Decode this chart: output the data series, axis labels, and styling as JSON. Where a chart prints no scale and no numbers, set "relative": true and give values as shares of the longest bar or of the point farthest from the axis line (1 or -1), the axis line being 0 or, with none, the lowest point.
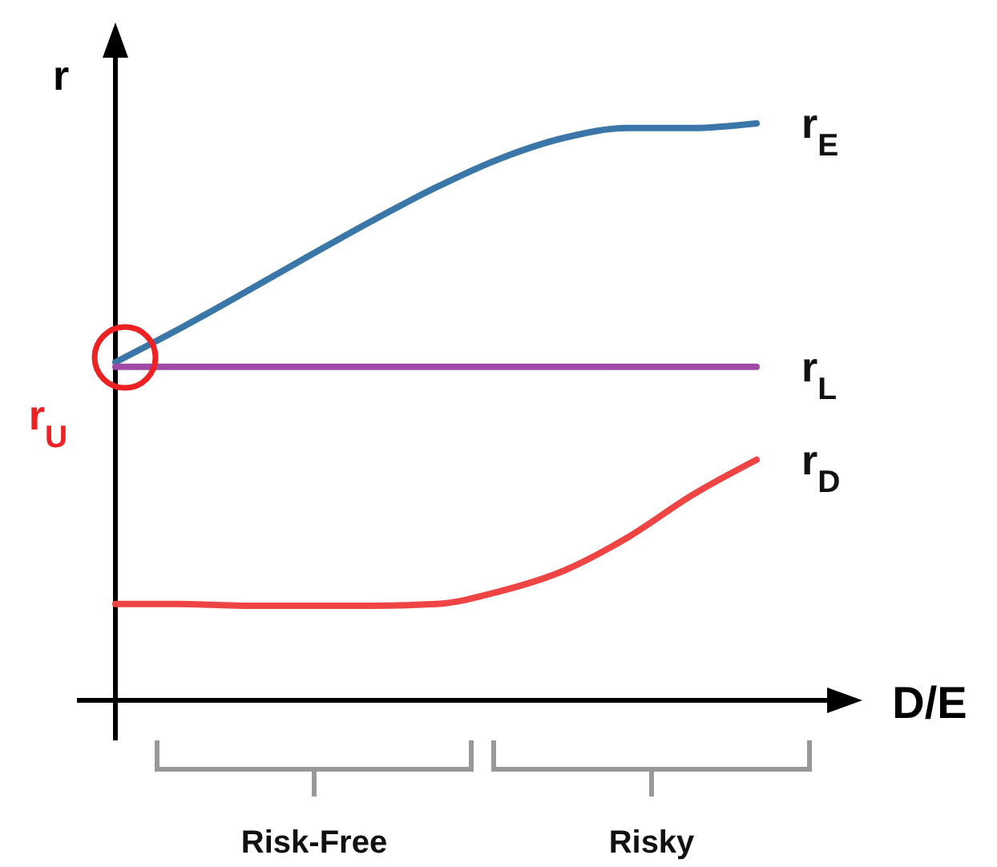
{
  "chart_data": {
    "type": "line",
    "relative": true,
    "xlabel": "D/E",
    "ylabel": "r",
    "categories": [
      null,
      null,
      null,
      null,
      null,
      null,
      null,
      null,
      null,
      null,
      null
    ],
    "series": [
      {
        "name": "r$_{E}$",
        "color": "#3a76a8",
        "values": [
          0.586,
          0.644,
          0.706,
          0.769,
          0.831,
          0.889,
          0.939,
          0.975,
          0.992,
          0.992,
          1
        ]
      },
      {
        "name": "r$_{L}$",
        "color": "#9e4aa6",
        "values": [
          0.578,
          0.578,
          0.578,
          0.578,
          0.578,
          0.578,
          0.578,
          0.578,
          0.578,
          0.578,
          0.578
        ]
      },
      {
        "name": "r$_{D}$",
        "color": "#ee4444",
        "values": [
          0.167,
          0.167,
          0.164,
          0.164,
          0.164,
          0.167,
          0.189,
          0.225,
          0.283,
          0.356,
          0.417
        ]
      }
    ],
    "annotations": [
      "r$_{U}$",
      "Risk-Free",
      "Risky"
    ],
    "legend": false,
    "marker": "none",
    "line_style": "solid"
  }
}
